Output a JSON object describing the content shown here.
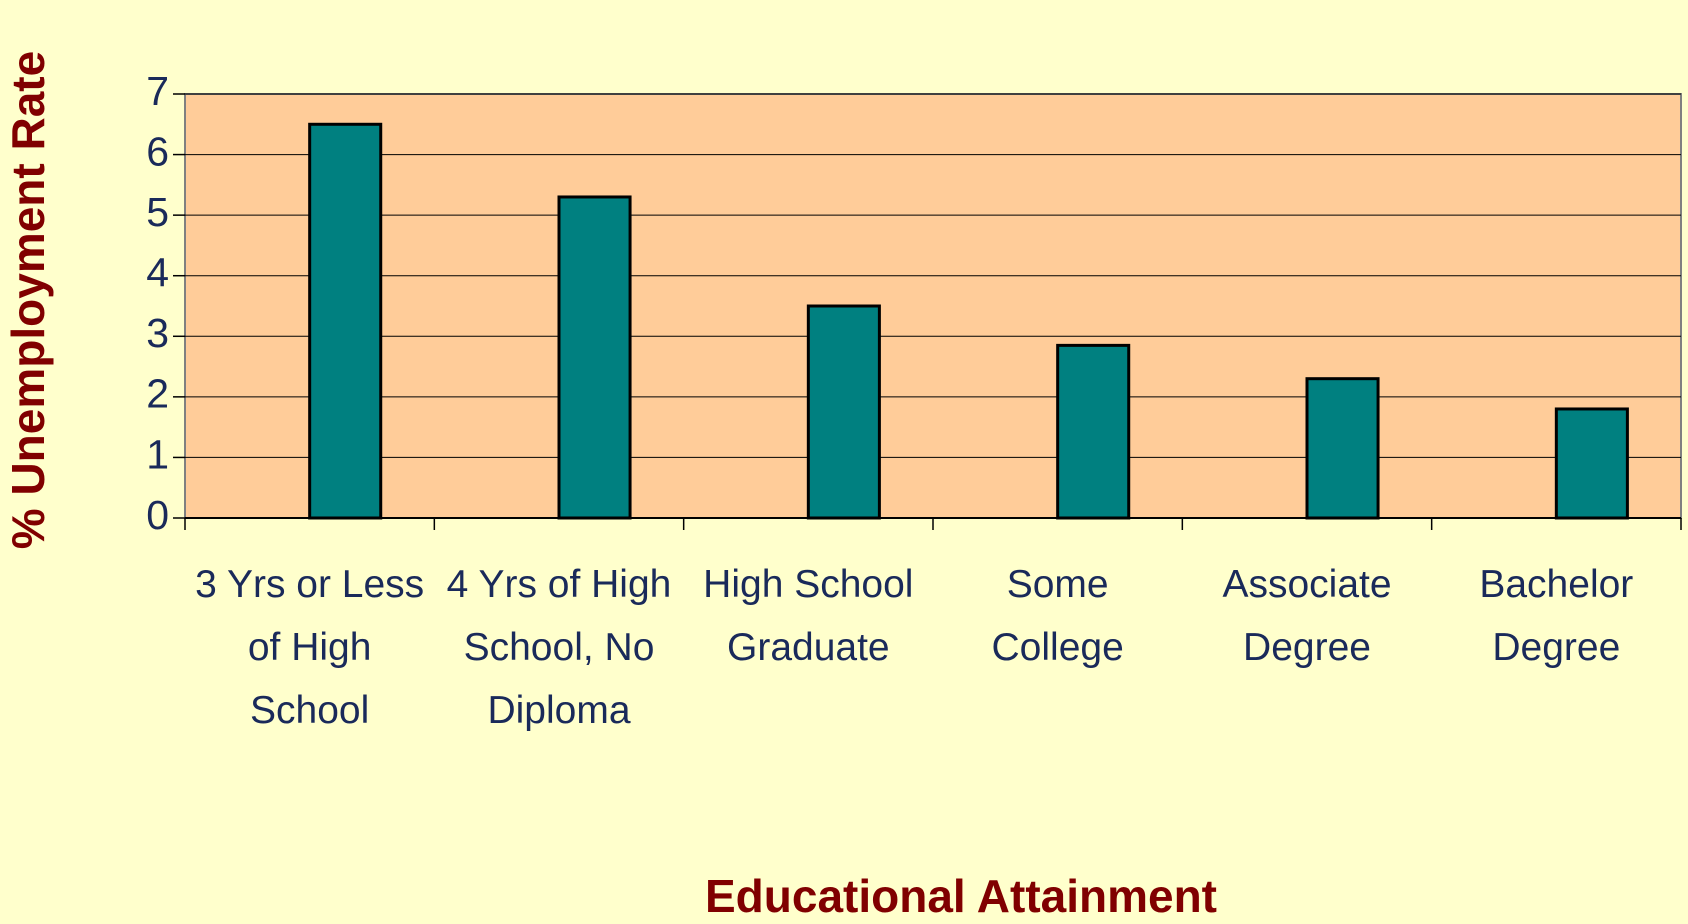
{
  "chart_data": {
    "type": "bar",
    "x_label": "Educational Attainment",
    "y_label": "% Unemployment Rate",
    "categories": [
      "3 Yrs or Less of High School",
      "4 Yrs of High School, No Diploma",
      "High School Graduate",
      "Some College",
      "Associate Degree",
      "Bachelor Degree"
    ],
    "values": [
      6.5,
      5.3,
      3.5,
      2.85,
      2.3,
      1.8
    ],
    "color": "#008080",
    "ylim": [
      0,
      7
    ],
    "yticks": [
      0,
      1,
      2,
      3,
      4,
      5,
      6,
      7
    ],
    "grid": true
  }
}
